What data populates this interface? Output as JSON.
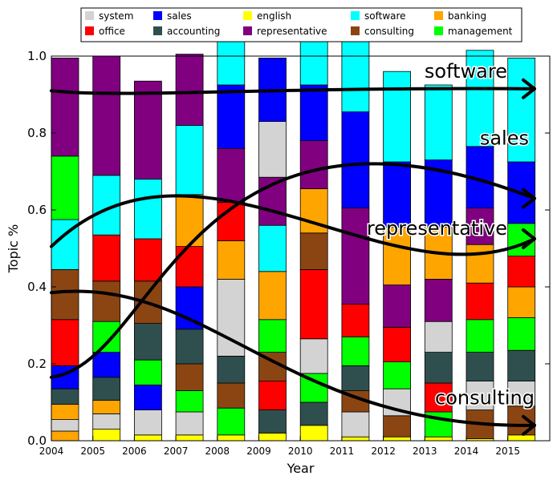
{
  "chart_data": {
    "type": "bar",
    "stacked": true,
    "title": "",
    "xlabel": "Year",
    "ylabel": "Topic %",
    "ylim": [
      0,
      1
    ],
    "yticks": [
      "0.0",
      "0.2",
      "0.4",
      "0.6",
      "0.8",
      "1.0"
    ],
    "categories": [
      "2004",
      "2005",
      "2006",
      "2007",
      "2008",
      "2009",
      "2010",
      "2011",
      "2012",
      "2013",
      "2014",
      "2015"
    ],
    "legend_position": "top",
    "series": [
      {
        "name": "banking",
        "color": "#ffa500",
        "values": [
          0.025,
          0.0,
          0.0,
          0.0,
          0.0,
          0.0,
          0.0,
          0.0,
          0.0,
          0.0,
          0.0,
          0.0
        ]
      },
      {
        "name": "english",
        "color": "#ffff00",
        "values": [
          0.0,
          0.03,
          0.015,
          0.015,
          0.015,
          0.02,
          0.04,
          0.01,
          0.01,
          0.01,
          0.005,
          0.015
        ]
      },
      {
        "name": "system",
        "color": "#d3d3d3",
        "values": [
          0.03,
          0.04,
          0.065,
          0.06,
          0.0,
          0.0,
          0.0,
          0.065,
          0.0,
          0.0,
          0.0,
          0.0
        ]
      },
      {
        "name": "management",
        "color": "#00ff00",
        "values": [
          0.0,
          0.0,
          0.0,
          0.055,
          0.07,
          0.0,
          0.0,
          0.0,
          0.0,
          0.065,
          0.0,
          0.0
        ]
      },
      {
        "name": "consulting",
        "color": "#8b4513",
        "values": [
          0.0,
          0.0,
          0.0,
          0.0,
          0.065,
          0.0,
          0.0,
          0.0,
          0.055,
          0.0,
          0.075,
          0.075
        ]
      },
      {
        "name": "accounting",
        "color": "#2f4f4f",
        "values": [
          0.0,
          0.0,
          0.0,
          0.0,
          0.07,
          0.06,
          0.06,
          0.0,
          0.0,
          0.0,
          0.0,
          0.0
        ]
      },
      {
        "name": "banking",
        "color": "#ffa500",
        "values": [
          0.04,
          0.035,
          0.0,
          0.0,
          0.0,
          0.0,
          0.0,
          0.0,
          0.0,
          0.0,
          0.0,
          0.0
        ]
      },
      {
        "name": "system",
        "color": "#d3d3d3",
        "values": [
          0.0,
          0.0,
          0.0,
          0.0,
          0.0,
          0.0,
          0.0,
          0.0,
          0.07,
          0.0,
          0.075,
          0.065
        ]
      },
      {
        "name": "consulting",
        "color": "#8b4513",
        "values": [
          0.0,
          0.0,
          0.0,
          0.07,
          0.0,
          0.0,
          0.0,
          0.055,
          0.0,
          0.0,
          0.0,
          0.0
        ]
      },
      {
        "name": "accounting",
        "color": "#2f4f4f",
        "values": [
          0.04,
          0.06,
          0.0,
          0.09,
          0.0,
          0.0,
          0.0,
          0.065,
          0.0,
          0.0,
          0.075,
          0.08
        ]
      },
      {
        "name": "management",
        "color": "#00ff00",
        "values": [
          0.0,
          0.0,
          0.0,
          0.0,
          0.0,
          0.0,
          0.075,
          0.075,
          0.07,
          0.0,
          0.085,
          0.085
        ]
      },
      {
        "name": "sales",
        "color": "#0000ff",
        "values": [
          0.06,
          0.065,
          0.065,
          0.0,
          0.0,
          0.0,
          0.0,
          0.0,
          0.0,
          0.0,
          0.0,
          0.0
        ]
      },
      {
        "name": "office",
        "color": "#ff0000",
        "values": [
          0.12,
          0.0,
          0.0,
          0.0,
          0.0,
          0.075,
          0.0,
          0.0,
          0.0,
          0.075,
          0.0,
          0.0
        ]
      },
      {
        "name": "management",
        "color": "#00ff00",
        "values": [
          0.0,
          0.08,
          0.065,
          0.0,
          0.0,
          0.0,
          0.0,
          0.0,
          0.0,
          0.0,
          0.0,
          0.0
        ]
      },
      {
        "name": "accounting",
        "color": "#2f4f4f",
        "values": [
          0.0,
          0.0,
          0.095,
          0.0,
          0.0,
          0.0,
          0.0,
          0.0,
          0.0,
          0.08,
          0.0,
          0.0
        ]
      },
      {
        "name": "system",
        "color": "#d3d3d3",
        "values": [
          0.0,
          0.0,
          0.0,
          0.0,
          0.2,
          0.0,
          0.09,
          0.0,
          0.0,
          0.08,
          0.0,
          0.0
        ]
      },
      {
        "name": "consulting",
        "color": "#8b4513",
        "values": [
          0.13,
          0.105,
          0.11,
          0.0,
          0.0,
          0.075,
          0.0,
          0.0,
          0.0,
          0.0,
          0.0,
          0.0
        ]
      },
      {
        "name": "banking",
        "color": "#ffa500",
        "values": [
          0.0,
          0.0,
          0.0,
          0.0,
          0.1,
          0.0,
          0.0,
          0.0,
          0.0,
          0.0,
          0.0,
          0.08
        ]
      },
      {
        "name": "management",
        "color": "#00ff00",
        "values": [
          0.0,
          0.0,
          0.0,
          0.0,
          0.0,
          0.085,
          0.0,
          0.0,
          0.0,
          0.0,
          0.0,
          0.0
        ]
      },
      {
        "name": "office",
        "color": "#ff0000",
        "values": [
          0.0,
          0.0,
          0.0,
          0.0,
          0.0,
          0.0,
          0.18,
          0.085,
          0.09,
          0.0,
          0.095,
          0.08
        ]
      },
      {
        "name": "sales",
        "color": "#0000ff",
        "values": [
          0.0,
          0.0,
          0.0,
          0.11,
          0.0,
          0.0,
          0.0,
          0.0,
          0.0,
          0.0,
          0.0,
          0.0
        ]
      },
      {
        "name": "management",
        "color": "#00ff00",
        "values": [
          0.0,
          0.0,
          0.0,
          0.0,
          0.0,
          0.0,
          0.0,
          0.0,
          0.0,
          0.0,
          0.0,
          0.085
        ]
      },
      {
        "name": "office",
        "color": "#ff0000",
        "values": [
          0.0,
          0.0,
          0.11,
          0.105,
          0.1,
          0.0,
          0.0,
          0.0,
          0.0,
          0.0,
          0.0,
          0.0
        ]
      },
      {
        "name": "consulting",
        "color": "#8b4513",
        "values": [
          0.0,
          0.0,
          0.0,
          0.0,
          0.0,
          0.0,
          0.095,
          0.0,
          0.0,
          0.0,
          0.0,
          0.0
        ]
      },
      {
        "name": "banking",
        "color": "#ffa500",
        "values": [
          0.0,
          0.0,
          0.0,
          0.135,
          0.0,
          0.125,
          0.115,
          0.0,
          0.0,
          0.0,
          0.0,
          0.0
        ]
      },
      {
        "name": "representative",
        "color": "#800080",
        "values": [
          0.0,
          0.0,
          0.0,
          0.0,
          0.14,
          0.0,
          0.0,
          0.0,
          0.0,
          0.11,
          0.0,
          0.0
        ]
      },
      {
        "name": "office",
        "color": "#ff0000",
        "values": [
          0.0,
          0.12,
          0.0,
          0.0,
          0.0,
          0.0,
          0.0,
          0.0,
          0.0,
          0.0,
          0.0,
          0.0
        ]
      },
      {
        "name": "software",
        "color": "#00ffff",
        "values": [
          0.13,
          0.0,
          0.0,
          0.0,
          0.0,
          0.12,
          0.0,
          0.0,
          0.0,
          0.0,
          0.0,
          0.0
        ]
      },
      {
        "name": "representative",
        "color": "#800080",
        "values": [
          0.0,
          0.0,
          0.0,
          0.0,
          0.0,
          0.0,
          0.0,
          0.25,
          0.11,
          0.0,
          0.0,
          0.0
        ]
      },
      {
        "name": "banking",
        "color": "#ffa500",
        "values": [
          0.0,
          0.0,
          0.0,
          0.0,
          0.0,
          0.0,
          0.0,
          0.0,
          0.15,
          0.135,
          0.1,
          0.0
        ]
      },
      {
        "name": "representative",
        "color": "#800080",
        "values": [
          0.0,
          0.0,
          0.0,
          0.0,
          0.0,
          0.125,
          0.125,
          0.0,
          0.0,
          0.0,
          0.0,
          0.0
        ]
      },
      {
        "name": "sales",
        "color": "#0000ff",
        "values": [
          0.0,
          0.0,
          0.0,
          0.0,
          0.0,
          0.0,
          0.0,
          0.25,
          0.0,
          0.0,
          0.0,
          0.0
        ]
      },
      {
        "name": "representative",
        "color": "#800080",
        "values": [
          0.0,
          0.0,
          0.0,
          0.0,
          0.0,
          0.0,
          0.0,
          0.0,
          0.0,
          0.0,
          0.095,
          0.0
        ]
      },
      {
        "name": "sales",
        "color": "#0000ff",
        "values": [
          0.0,
          0.0,
          0.0,
          0.0,
          0.0,
          0.0,
          0.0,
          0.0,
          0.0,
          0.0,
          0.0,
          0.16
        ]
      },
      {
        "name": "representative",
        "color": "#800080",
        "values": [
          0.0,
          0.0,
          0.0,
          0.0,
          0.0,
          0.0,
          0.0,
          0.0,
          0.0,
          0.0,
          0.0,
          0.0
        ]
      },
      {
        "name": "system",
        "color": "#d3d3d3",
        "values": [
          0.0,
          0.0,
          0.0,
          0.0,
          0.0,
          0.145,
          0.0,
          0.0,
          0.0,
          0.0,
          0.0,
          0.0
        ]
      },
      {
        "name": "sales",
        "color": "#0000ff",
        "values": [
          0.0,
          0.0,
          0.0,
          0.0,
          0.165,
          0.0,
          0.145,
          0.0,
          0.17,
          0.175,
          0.16,
          0.0
        ]
      },
      {
        "name": "software",
        "color": "#00ffff",
        "values": [
          0.0,
          0.155,
          0.155,
          0.18,
          0.0,
          0.0,
          0.0,
          0.0,
          0.0,
          0.0,
          0.0,
          0.0
        ]
      },
      {
        "name": "management",
        "color": "#00ff00",
        "values": [
          0.165,
          0.0,
          0.0,
          0.0,
          0.0,
          0.0,
          0.0,
          0.0,
          0.0,
          0.0,
          0.0,
          0.0
        ]
      },
      {
        "name": "sales",
        "color": "#0000ff",
        "values": [
          0.0,
          0.0,
          0.0,
          0.0,
          0.0,
          0.165,
          0.0,
          0.0,
          0.0,
          0.0,
          0.0,
          0.0
        ]
      },
      {
        "name": "representative",
        "color": "#800080",
        "values": [
          0.255,
          0.31,
          0.255,
          0.185,
          0.0,
          0.0,
          0.0,
          0.0,
          0.0,
          0.0,
          0.0,
          0.0
        ]
      },
      {
        "name": "software",
        "color": "#00ffff",
        "values": [
          0.0,
          0.0,
          0.0,
          0.0,
          0.175,
          0.0,
          0.16,
          0.21,
          0.235,
          0.195,
          0.25,
          0.27
        ]
      }
    ],
    "legend": [
      {
        "label": "system",
        "color": "#d3d3d3"
      },
      {
        "label": "office",
        "color": "#ff0000"
      },
      {
        "label": "sales",
        "color": "#0000ff"
      },
      {
        "label": "accounting",
        "color": "#2f4f4f"
      },
      {
        "label": "english",
        "color": "#ffff00"
      },
      {
        "label": "representative",
        "color": "#800080"
      },
      {
        "label": "software",
        "color": "#00ffff"
      },
      {
        "label": "consulting",
        "color": "#8b4513"
      },
      {
        "label": "banking",
        "color": "#ffa500"
      },
      {
        "label": "management",
        "color": "#00ff00"
      }
    ],
    "annotations": [
      {
        "text": "software",
        "trend_from": 0.91,
        "trend_to": 0.915
      },
      {
        "text": "sales",
        "trend_from": 0.165,
        "trend_to": 0.63
      },
      {
        "text": "representative",
        "trend_from": 0.505,
        "trend_to": 0.525
      },
      {
        "text": "consulting",
        "trend_from": 0.385,
        "trend_to": 0.04
      }
    ]
  }
}
